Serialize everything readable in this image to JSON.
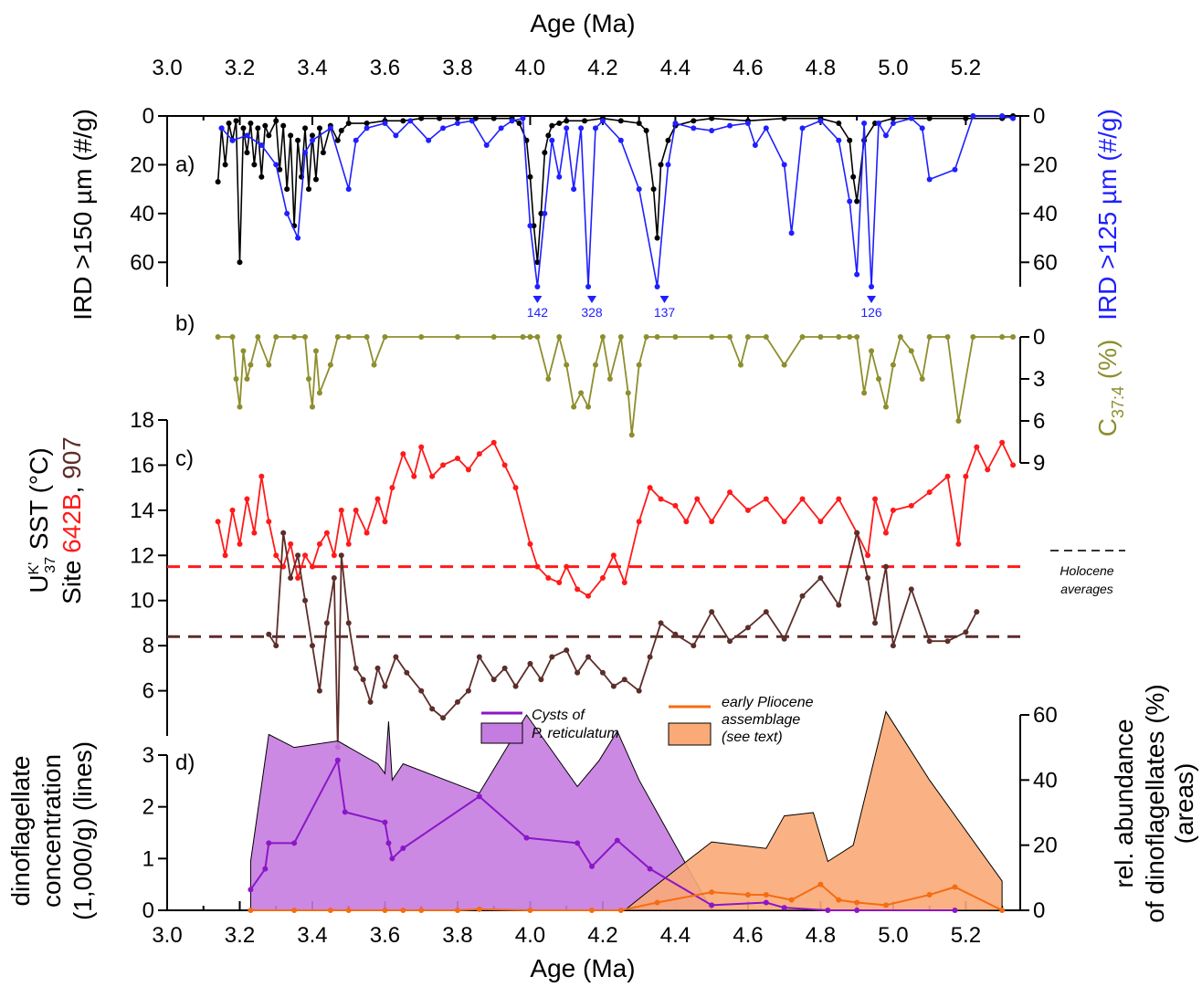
{
  "chart_data": {
    "type": "line",
    "x_axis": {
      "label": "Age (Ma)",
      "range": [
        3.0,
        5.35
      ],
      "ticks": [
        "3.0",
        "3.2",
        "3.4",
        "3.6",
        "3.8",
        "4.0",
        "4.2",
        "4.4",
        "4.6",
        "4.8",
        "5.0",
        "5.2"
      ]
    },
    "panel_a": {
      "tag": "a)",
      "ylabel_left": "IRD >150 µm (#/g)",
      "ylabel_right": "IRD >125 µm (#/g)",
      "yrange": [
        0,
        70
      ],
      "ticks": [
        "0",
        "20",
        "40",
        "60"
      ],
      "overflow_labels": [
        {
          "x": 4.02,
          "text": "142"
        },
        {
          "x": 4.17,
          "text": "328"
        },
        {
          "x": 4.37,
          "text": "137"
        },
        {
          "x": 4.94,
          "text": "126"
        }
      ],
      "series": [
        {
          "color": "#000000",
          "x": [
            3.14,
            3.15,
            3.16,
            3.17,
            3.18,
            3.19,
            3.2,
            3.21,
            3.22,
            3.23,
            3.24,
            3.25,
            3.26,
            3.27,
            3.28,
            3.3,
            3.31,
            3.32,
            3.33,
            3.34,
            3.35,
            3.36,
            3.37,
            3.38,
            3.39,
            3.4,
            3.41,
            3.42,
            3.43,
            3.45,
            3.47,
            3.48,
            3.5,
            3.55,
            3.6,
            3.65,
            3.7,
            3.75,
            3.8,
            3.85,
            3.9,
            3.95,
            3.97,
            3.99,
            4.0,
            4.01,
            4.02,
            4.03,
            4.04,
            4.05,
            4.06,
            4.08,
            4.1,
            4.15,
            4.2,
            4.25,
            4.3,
            4.32,
            4.34,
            4.35,
            4.36,
            4.38,
            4.4,
            4.45,
            4.5,
            4.6,
            4.7,
            4.8,
            4.85,
            4.88,
            4.89,
            4.9,
            4.92,
            4.95,
            5.0,
            5.1,
            5.2,
            5.3,
            5.33
          ],
          "y": [
            27,
            5,
            20,
            3,
            10,
            2,
            60,
            5,
            15,
            3,
            20,
            5,
            25,
            4,
            8,
            2,
            22,
            4,
            30,
            8,
            45,
            10,
            25,
            5,
            30,
            8,
            26,
            5,
            15,
            4,
            10,
            6,
            3,
            3,
            2,
            2,
            1,
            1,
            1,
            1,
            1,
            1,
            3,
            10,
            25,
            45,
            60,
            40,
            15,
            8,
            4,
            3,
            2,
            2,
            1,
            2,
            3,
            6,
            30,
            50,
            20,
            10,
            4,
            2,
            1,
            2,
            1,
            1,
            3,
            10,
            25,
            35,
            10,
            3,
            1,
            1,
            1,
            1,
            0
          ]
        },
        {
          "color": "#1f1fff",
          "x": [
            3.15,
            3.18,
            3.22,
            3.26,
            3.3,
            3.33,
            3.36,
            3.38,
            3.4,
            3.45,
            3.5,
            3.52,
            3.55,
            3.6,
            3.63,
            3.67,
            3.72,
            3.76,
            3.8,
            3.84,
            3.88,
            3.92,
            3.95,
            3.98,
            4.0,
            4.02,
            4.04,
            4.06,
            4.08,
            4.1,
            4.12,
            4.14,
            4.16,
            4.18,
            4.2,
            4.25,
            4.3,
            4.35,
            4.38,
            4.4,
            4.45,
            4.5,
            4.55,
            4.6,
            4.62,
            4.65,
            4.7,
            4.72,
            4.75,
            4.8,
            4.85,
            4.88,
            4.9,
            4.92,
            4.94,
            4.96,
            4.98,
            5.0,
            5.05,
            5.08,
            5.1,
            5.17,
            5.22,
            5.3,
            5.33
          ],
          "y": [
            5,
            10,
            8,
            12,
            20,
            40,
            50,
            15,
            10,
            5,
            30,
            10,
            5,
            3,
            8,
            2,
            10,
            5,
            3,
            2,
            12,
            5,
            2,
            1,
            45,
            70,
            40,
            10,
            25,
            5,
            30,
            5,
            70,
            5,
            2,
            10,
            30,
            70,
            20,
            3,
            5,
            6,
            4,
            3,
            12,
            5,
            20,
            48,
            5,
            2,
            10,
            35,
            65,
            3,
            70,
            3,
            8,
            3,
            1,
            5,
            26,
            22,
            0,
            0,
            1
          ]
        }
      ]
    },
    "panel_b": {
      "tag": "b)",
      "ylabel_right": "C37:4 (%)",
      "ylabel_main": "C",
      "ylabel_sub": "37:4",
      "ylabel_tail": " (%)",
      "yrange": [
        0,
        9
      ],
      "ticks": [
        "0",
        "3",
        "6",
        "9"
      ],
      "series": [
        {
          "color": "#8e8e2e",
          "x": [
            3.14,
            3.18,
            3.19,
            3.2,
            3.21,
            3.22,
            3.23,
            3.25,
            3.28,
            3.3,
            3.35,
            3.38,
            3.39,
            3.4,
            3.41,
            3.42,
            3.45,
            3.47,
            3.5,
            3.55,
            3.57,
            3.6,
            3.7,
            3.8,
            3.9,
            3.98,
            4.0,
            4.02,
            4.05,
            4.08,
            4.1,
            4.12,
            4.14,
            4.16,
            4.18,
            4.2,
            4.22,
            4.25,
            4.27,
            4.28,
            4.3,
            4.32,
            4.35,
            4.4,
            4.5,
            4.55,
            4.58,
            4.6,
            4.65,
            4.7,
            4.75,
            4.8,
            4.85,
            4.88,
            4.9,
            4.92,
            4.94,
            4.96,
            4.98,
            5.0,
            5.02,
            5.05,
            5.08,
            5.1,
            5.15,
            5.18,
            5.22,
            5.3,
            5.33
          ],
          "y": [
            0,
            0,
            3,
            5,
            1,
            3,
            2,
            0,
            2,
            0,
            0,
            0,
            3,
            5,
            1,
            4,
            2,
            0,
            0,
            0,
            2,
            0,
            0,
            0,
            0,
            0,
            0,
            0,
            3,
            0,
            2,
            5,
            4,
            5,
            2,
            0,
            3,
            0,
            4,
            7,
            2,
            0,
            0,
            0,
            0,
            0,
            2,
            0,
            0,
            2,
            0,
            0,
            0,
            0,
            0,
            4,
            1,
            3,
            5,
            2,
            0,
            1,
            3,
            0,
            0,
            6,
            0,
            0,
            0
          ]
        }
      ]
    },
    "panel_c": {
      "tag": "c)",
      "ylabel_line1_main": "U",
      "ylabel_line1_sup": "K'",
      "ylabel_line1_sub": "37",
      "ylabel_line1_tail": " SST (°C)",
      "ylabel_line2_a": "Site ",
      "ylabel_line2_b": "642B",
      "ylabel_line2_c": ", ",
      "ylabel_line2_d": "907",
      "yrange": [
        4,
        18
      ],
      "ticks": [
        "6",
        "8",
        "10",
        "12",
        "14",
        "16",
        "18"
      ],
      "holocene_label_1": "Holocene",
      "holocene_label_2": "averages",
      "holocene": [
        {
          "site": "642B",
          "value": 11.5,
          "color": "#ff1a1a"
        },
        {
          "site": "907",
          "value": 8.4,
          "color": "#5c2e2a"
        }
      ],
      "series": [
        {
          "name": "642B",
          "color": "#ff1a1a",
          "x": [
            3.14,
            3.16,
            3.18,
            3.2,
            3.22,
            3.24,
            3.26,
            3.28,
            3.3,
            3.32,
            3.34,
            3.36,
            3.38,
            3.4,
            3.42,
            3.44,
            3.46,
            3.48,
            3.5,
            3.52,
            3.55,
            3.58,
            3.6,
            3.62,
            3.65,
            3.68,
            3.7,
            3.73,
            3.76,
            3.8,
            3.83,
            3.86,
            3.9,
            3.93,
            3.96,
            4.0,
            4.02,
            4.05,
            4.08,
            4.1,
            4.13,
            4.16,
            4.2,
            4.23,
            4.26,
            4.3,
            4.33,
            4.36,
            4.4,
            4.43,
            4.46,
            4.5,
            4.55,
            4.6,
            4.65,
            4.7,
            4.75,
            4.8,
            4.85,
            4.9,
            4.93,
            4.95,
            4.98,
            5.0,
            5.05,
            5.1,
            5.15,
            5.18,
            5.2,
            5.23,
            5.26,
            5.3,
            5.33
          ],
          "y": [
            13.5,
            12,
            14,
            12.5,
            14.5,
            13,
            15.5,
            13.5,
            12,
            11.5,
            12.5,
            11,
            12,
            11.5,
            12.5,
            13,
            12,
            14,
            12.5,
            14,
            13,
            14.5,
            13.5,
            15,
            16.5,
            15.5,
            16.8,
            15.5,
            16,
            16.3,
            15.8,
            16.5,
            17,
            16,
            15,
            12.5,
            11.5,
            11,
            10.8,
            11.5,
            10.5,
            10.2,
            11,
            12,
            10.8,
            13.5,
            15,
            14.5,
            14.2,
            13.5,
            14.5,
            13.5,
            14.8,
            14,
            14.5,
            13.5,
            14.5,
            13.5,
            14.5,
            13,
            12,
            14.5,
            13,
            14,
            14.2,
            14.8,
            15.5,
            12.5,
            15.5,
            16.8,
            15.8,
            17,
            16
          ]
        },
        {
          "name": "907",
          "color": "#5c2e2a",
          "x": [
            3.28,
            3.3,
            3.32,
            3.34,
            3.36,
            3.38,
            3.4,
            3.42,
            3.44,
            3.46,
            3.47,
            3.48,
            3.5,
            3.52,
            3.54,
            3.56,
            3.58,
            3.6,
            3.63,
            3.66,
            3.7,
            3.73,
            3.76,
            3.8,
            3.83,
            3.86,
            3.9,
            3.93,
            3.96,
            4.0,
            4.03,
            4.06,
            4.1,
            4.13,
            4.16,
            4.2,
            4.23,
            4.26,
            4.3,
            4.33,
            4.36,
            4.4,
            4.45,
            4.5,
            4.55,
            4.6,
            4.65,
            4.7,
            4.75,
            4.8,
            4.85,
            4.9,
            4.93,
            4.95,
            4.98,
            5.0,
            5.05,
            5.1,
            5.15,
            5.2,
            5.23
          ],
          "y": [
            8.5,
            8,
            13,
            11,
            12,
            10,
            8,
            6,
            9,
            11,
            3.5,
            12,
            9,
            7,
            6.5,
            5.5,
            7,
            6.2,
            7.5,
            6.8,
            6,
            5.2,
            4.8,
            5.5,
            6,
            7.5,
            6.5,
            7,
            6.2,
            7.2,
            6.5,
            7.5,
            7.8,
            6.8,
            7.5,
            6.8,
            6.2,
            6.5,
            6,
            7.5,
            9,
            8.5,
            8,
            9.5,
            8.2,
            8.8,
            9.5,
            8.3,
            10.2,
            11,
            9.8,
            13,
            11,
            9,
            11.5,
            8,
            10.5,
            8.2,
            8.2,
            8.6,
            9.5
          ]
        }
      ]
    },
    "panel_d": {
      "tag": "d)",
      "ylabel_left": [
        "dinoflagellate",
        "concentration",
        "(1,000/g) (lines)"
      ],
      "ylabel_right": [
        "rel. abundance",
        "of dinoflagellates (%)",
        "(areas)"
      ],
      "yrange_left": [
        0,
        3
      ],
      "ticks_left": [
        "0",
        "1",
        "2",
        "3"
      ],
      "yrange_right": [
        0,
        60
      ],
      "ticks_right": [
        "0",
        "20",
        "40",
        "60"
      ],
      "legend": {
        "purple_label_1": "Cysts of",
        "purple_label_2": "P. reticulatum",
        "orange_label_1": "early Pliocene",
        "orange_label_2": "assemblage",
        "orange_label_3": "(see text)"
      },
      "areas": [
        {
          "name": "Cysts of P. reticulatum",
          "color": "#c57ce0",
          "x": [
            3.23,
            3.28,
            3.35,
            3.47,
            3.58,
            3.6,
            3.61,
            3.62,
            3.65,
            3.86,
            3.99,
            4.13,
            4.19,
            4.24,
            4.3,
            4.5
          ],
          "y": [
            15,
            54,
            50,
            52,
            45,
            42,
            58,
            40,
            45,
            36,
            60,
            38,
            46,
            55,
            40,
            0
          ]
        },
        {
          "name": "early Pliocene assemblage",
          "color": "#f9aa77",
          "x": [
            4.26,
            4.35,
            4.5,
            4.65,
            4.7,
            4.78,
            4.82,
            4.89,
            4.98,
            5.1,
            5.3
          ],
          "y": [
            0,
            8,
            21,
            19,
            29,
            30,
            15,
            20,
            61,
            40,
            9
          ]
        }
      ],
      "series": [
        {
          "name": "Cysts of P. reticulatum",
          "color": "#8b16c8",
          "x": [
            3.23,
            3.27,
            3.28,
            3.35,
            3.47,
            3.49,
            3.6,
            3.61,
            3.62,
            3.65,
            3.86,
            3.99,
            4.13,
            4.17,
            4.24,
            4.33,
            4.5,
            4.65,
            4.7,
            4.82,
            4.9,
            5.17
          ],
          "y": [
            0.4,
            0.8,
            1.3,
            1.3,
            2.9,
            1.9,
            1.7,
            1.3,
            1.0,
            1.2,
            2.2,
            1.4,
            1.3,
            0.85,
            1.35,
            0.8,
            0.1,
            0.15,
            0.05,
            0,
            0,
            0
          ]
        },
        {
          "name": "early Pliocene assemblage",
          "color": "#f56c12",
          "x": [
            3.23,
            3.35,
            3.45,
            3.5,
            3.6,
            3.65,
            3.7,
            3.8,
            3.86,
            4.0,
            4.17,
            4.25,
            4.35,
            4.5,
            4.6,
            4.65,
            4.72,
            4.8,
            4.85,
            4.9,
            4.98,
            5.1,
            5.17,
            5.3
          ],
          "y": [
            0,
            0,
            0,
            0,
            0,
            0,
            0,
            0,
            0.02,
            0,
            0,
            0,
            0.15,
            0.35,
            0.3,
            0.3,
            0.2,
            0.5,
            0.2,
            0.15,
            0.1,
            0.3,
            0.45,
            0
          ]
        }
      ]
    }
  }
}
